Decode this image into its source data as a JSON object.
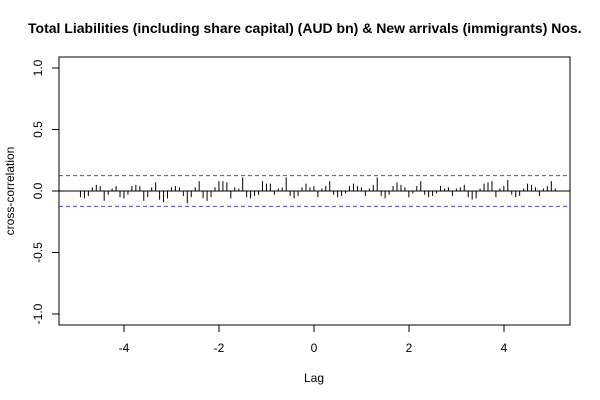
{
  "chart_data": {
    "type": "bar",
    "title": "Total Liabilities (including share capital) (AUD bn)  & New arrivals (immigrants) Nos.",
    "xlabel": "Lag",
    "ylabel": "cross-correlation",
    "xlim": [
      -5.2,
      5.4
    ],
    "ylim": [
      -1.08,
      1.08
    ],
    "x_ticks": [
      {
        "value": -4,
        "label": "-4"
      },
      {
        "value": -2,
        "label": "-2"
      },
      {
        "value": 0,
        "label": "0"
      },
      {
        "value": 2,
        "label": "2"
      },
      {
        "value": 4,
        "label": "4"
      }
    ],
    "y_ticks": [
      {
        "value": -1.0,
        "label": "-1.0"
      },
      {
        "value": -0.5,
        "label": "-0.5"
      },
      {
        "value": 0.0,
        "label": "0.0"
      },
      {
        "value": 0.5,
        "label": "0.5"
      },
      {
        "value": 1.0,
        "label": "1.0"
      }
    ],
    "confidence_bounds": [
      0.125,
      -0.125
    ],
    "lag_start": -4.9167,
    "lag_step": 0.0833,
    "values": [
      -0.05,
      -0.06,
      -0.04,
      0.03,
      0.05,
      0.04,
      -0.08,
      -0.03,
      0.02,
      0.04,
      -0.05,
      -0.06,
      -0.03,
      0.04,
      0.05,
      0.04,
      -0.08,
      -0.05,
      0.03,
      0.07,
      -0.07,
      -0.09,
      -0.06,
      0.03,
      0.04,
      0.03,
      -0.04,
      -0.1,
      -0.05,
      0.03,
      0.08,
      -0.06,
      -0.08,
      -0.05,
      0.03,
      0.08,
      0.08,
      0.07,
      -0.06,
      0.03,
      0.02,
      0.11,
      -0.05,
      -0.06,
      -0.04,
      -0.03,
      0.08,
      0.06,
      0.06,
      -0.03,
      0.02,
      0.03,
      0.11,
      -0.04,
      -0.06,
      -0.04,
      0.03,
      0.06,
      0.03,
      0.04,
      -0.05,
      0.02,
      0.04,
      0.08,
      -0.03,
      -0.05,
      -0.04,
      -0.02,
      0.04,
      0.06,
      0.04,
      0.03,
      -0.04,
      0.02,
      0.05,
      0.11,
      -0.04,
      -0.06,
      -0.03,
      0.04,
      0.07,
      0.05,
      0.03,
      -0.05,
      -0.02,
      0.04,
      0.08,
      -0.03,
      -0.05,
      -0.04,
      -0.02,
      0.04,
      0.02,
      0.03,
      -0.04,
      0.02,
      0.03,
      0.05,
      -0.05,
      -0.07,
      -0.06,
      0.02,
      0.06,
      0.07,
      0.08,
      -0.05,
      0.02,
      0.04,
      0.09,
      -0.03,
      -0.05,
      -0.04,
      0.02,
      0.06,
      0.05,
      0.03,
      -0.04,
      0.02,
      0.04,
      0.08,
      0.02
    ]
  }
}
